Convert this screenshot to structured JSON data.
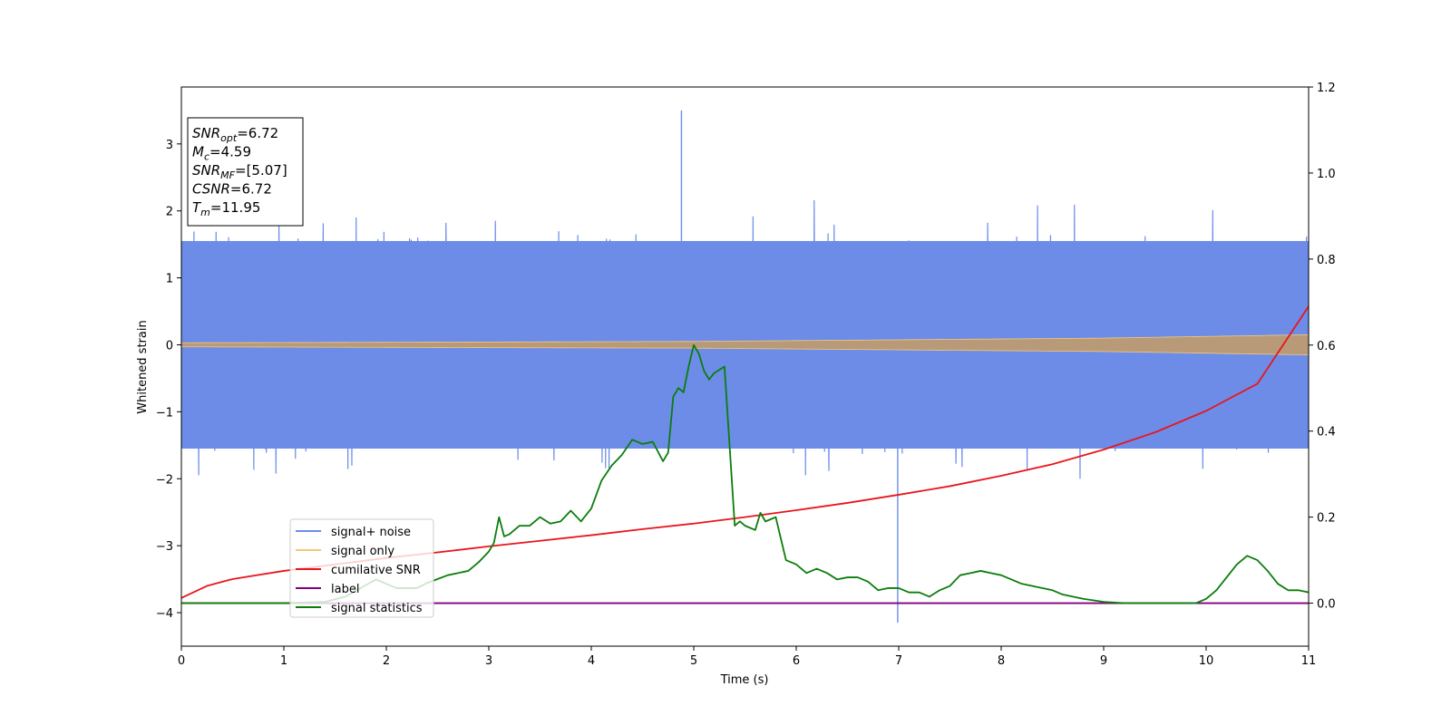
{
  "chart_data": {
    "type": "line",
    "xlabel": "Time (s)",
    "ylabel": "Whitened strain",
    "xlim": [
      0,
      11
    ],
    "ylim_left": [
      -4.5,
      3.85
    ],
    "ylim_right": [
      -0.1,
      1.2
    ],
    "x_ticks": [
      "0",
      "1",
      "2",
      "3",
      "4",
      "5",
      "6",
      "7",
      "8",
      "9",
      "10",
      "11"
    ],
    "y_ticks_left": [
      "−4",
      "−3",
      "−2",
      "−1",
      "0",
      "1",
      "2",
      "3"
    ],
    "y_ticks_right": [
      "0.0",
      "0.2",
      "0.4",
      "0.6",
      "0.8",
      "1.0",
      "1.2"
    ],
    "grid": false,
    "legend_position": "lower-left",
    "annotation": {
      "lines": [
        {
          "base": "SNR",
          "sub": "opt",
          "value": "=6.72"
        },
        {
          "base": "M",
          "sub": "c",
          "value": "=4.59"
        },
        {
          "base": "SNR",
          "sub": "MF",
          "value": "=[5.07]"
        },
        {
          "base": "CSNR",
          "sub": "",
          "value": "=6.72"
        },
        {
          "base": "T",
          "sub": "m",
          "value": "=11.95"
        }
      ]
    },
    "series": [
      {
        "name": "signal+ noise",
        "axis": "left",
        "color": "#6d8ce8",
        "kind": "noise",
        "band_half_width": 1.55,
        "spike_max": 3.5,
        "spike_min": -4.15,
        "description_points": {
          "max_peak_x": 4.88,
          "max_peak_y": 3.5,
          "min_peak_x": 6.99,
          "min_peak_y": -4.15
        }
      },
      {
        "name": "signal only",
        "axis": "left",
        "color": "#f5c87a",
        "kind": "chirp",
        "amplitude_points": [
          [
            0,
            0.03
          ],
          [
            5,
            0.05
          ],
          [
            9,
            0.1
          ],
          [
            11,
            0.15
          ]
        ]
      },
      {
        "name": "cumilative SNR",
        "axis": "right",
        "color": "#e8161c",
        "x": [
          0,
          0.25,
          0.5,
          1,
          1.5,
          2,
          2.5,
          3,
          3.5,
          4,
          4.5,
          5,
          5.5,
          6,
          6.5,
          7,
          7.5,
          8,
          8.5,
          9,
          9.5,
          10,
          10.5,
          11
        ],
        "y": [
          0.012,
          0.04,
          0.056,
          0.075,
          0.09,
          0.105,
          0.118,
          0.132,
          0.145,
          0.158,
          0.172,
          0.185,
          0.2,
          0.216,
          0.233,
          0.252,
          0.272,
          0.296,
          0.323,
          0.357,
          0.397,
          0.447,
          0.51,
          0.69
        ]
      },
      {
        "name": "label",
        "axis": "right",
        "color": "#800080",
        "x": [
          0,
          11
        ],
        "y": [
          0,
          0
        ]
      },
      {
        "name": "signal statistics",
        "axis": "right",
        "color": "#0b7d0b",
        "x": [
          0,
          0.5,
          1,
          1.4,
          1.6,
          1.8,
          1.9,
          2.1,
          2.3,
          2.4,
          2.6,
          2.8,
          2.9,
          3.0,
          3.05,
          3.1,
          3.15,
          3.2,
          3.3,
          3.4,
          3.5,
          3.6,
          3.7,
          3.8,
          3.9,
          4.0,
          4.1,
          4.2,
          4.3,
          4.4,
          4.5,
          4.6,
          4.7,
          4.75,
          4.8,
          4.85,
          4.9,
          4.95,
          5.0,
          5.05,
          5.1,
          5.15,
          5.2,
          5.3,
          5.4,
          5.45,
          5.5,
          5.6,
          5.65,
          5.7,
          5.8,
          5.9,
          6.0,
          6.1,
          6.2,
          6.3,
          6.4,
          6.5,
          6.6,
          6.7,
          6.8,
          6.9,
          7.0,
          7.1,
          7.2,
          7.3,
          7.4,
          7.5,
          7.6,
          7.7,
          7.8,
          7.9,
          8.0,
          8.1,
          8.2,
          8.3,
          8.4,
          8.5,
          8.6,
          8.8,
          9.0,
          9.2,
          9.4,
          9.6,
          9.8,
          9.9,
          10.0,
          10.1,
          10.2,
          10.3,
          10.4,
          10.5,
          10.6,
          10.7,
          10.8,
          10.9,
          11.0
        ],
        "y": [
          0.0,
          0.0,
          0.0,
          0.003,
          0.015,
          0.042,
          0.055,
          0.035,
          0.035,
          0.047,
          0.065,
          0.075,
          0.095,
          0.12,
          0.14,
          0.2,
          0.155,
          0.16,
          0.18,
          0.18,
          0.2,
          0.185,
          0.19,
          0.215,
          0.19,
          0.22,
          0.285,
          0.32,
          0.345,
          0.38,
          0.37,
          0.375,
          0.33,
          0.35,
          0.48,
          0.5,
          0.49,
          0.55,
          0.6,
          0.58,
          0.54,
          0.52,
          0.535,
          0.55,
          0.18,
          0.19,
          0.18,
          0.17,
          0.21,
          0.19,
          0.2,
          0.1,
          0.09,
          0.07,
          0.08,
          0.07,
          0.055,
          0.06,
          0.06,
          0.05,
          0.03,
          0.035,
          0.035,
          0.025,
          0.025,
          0.015,
          0.03,
          0.04,
          0.065,
          0.07,
          0.075,
          0.07,
          0.065,
          0.055,
          0.045,
          0.04,
          0.035,
          0.03,
          0.02,
          0.01,
          0.003,
          0.0,
          0.0,
          0.0,
          0.0,
          0.0,
          0.01,
          0.03,
          0.06,
          0.09,
          0.11,
          0.1,
          0.075,
          0.045,
          0.03,
          0.03,
          0.025
        ]
      }
    ]
  },
  "legend": {
    "items": [
      {
        "label": "signal+ noise",
        "color": "#6d8ce8"
      },
      {
        "label": "signal only",
        "color": "#f5c87a"
      },
      {
        "label": "cumilative SNR",
        "color": "#e8161c"
      },
      {
        "label": "label",
        "color": "#800080"
      },
      {
        "label": "signal statistics",
        "color": "#0b7d0b"
      }
    ]
  },
  "colors": {
    "noise": "#6d8ce8",
    "signal": "#f5c87a",
    "overlap": "#b89a78",
    "snr": "#e8161c",
    "label": "#800080",
    "stats": "#0b7d0b"
  }
}
